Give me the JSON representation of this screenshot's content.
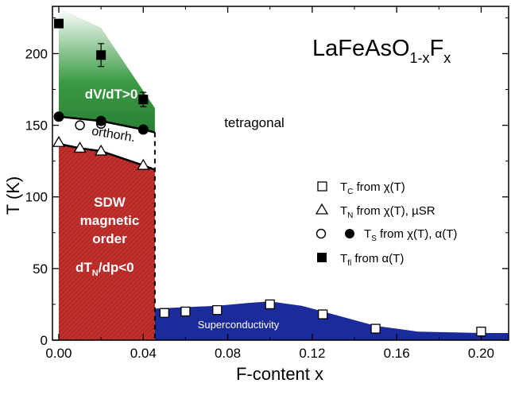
{
  "chart_data": {
    "type": "scatter",
    "title_main": "LaFeAsO",
    "title_sub": "1-x",
    "title_f": "F",
    "title_x": "x",
    "xlabel": "F-content x",
    "ylabel": "T (K)",
    "xlim": [
      -0.003,
      0.213
    ],
    "ylim": [
      0,
      233
    ],
    "x_ticks": [
      0.0,
      0.04,
      0.08,
      0.12,
      0.16,
      0.2
    ],
    "x_tick_labels": [
      "0.00",
      "0.04",
      "0.08",
      "0.12",
      "0.16",
      "0.20"
    ],
    "y_ticks": [
      0,
      50,
      100,
      150,
      200
    ],
    "y_tick_labels": [
      "0",
      "50",
      "100",
      "150",
      "200"
    ],
    "colors": {
      "sdw": "#c2302e",
      "dvdt": "#2f8f3a",
      "sc": "#1c2b9c",
      "black": "#000000"
    },
    "region_labels": {
      "dvdt": "dV/dT>0",
      "orthorh": "orthorh.",
      "tetragonal": "tetragonal",
      "sdw_line1": "SDW",
      "sdw_line2": "magnetic",
      "sdw_line3": "order",
      "sdw_dt": "dT",
      "sdw_sub": "N",
      "sdw_rest": "/dp<0",
      "sc": "Superconductivity"
    },
    "legend": [
      {
        "marker": "open-square",
        "name": "T",
        "sub": "C",
        "rest": " from χ(T)"
      },
      {
        "marker": "open-triangle",
        "name": "T",
        "sub": "N",
        "rest": " from χ(T), µSR"
      },
      {
        "marker": "circles",
        "name": "T",
        "sub": "S",
        "rest": " from χ(T), α(T)"
      },
      {
        "marker": "filled-square",
        "name": "T",
        "sub": "fl",
        "rest": " from α(T)"
      }
    ],
    "series": [
      {
        "name": "T_C from χ(T)",
        "marker": "open-square",
        "x": [
          0.05,
          0.06,
          0.075,
          0.1,
          0.125,
          0.15,
          0.2
        ],
        "y": [
          19,
          20,
          21,
          25,
          18,
          8,
          6
        ]
      },
      {
        "name": "T_N from χ(T), µSR",
        "marker": "open-triangle",
        "x": [
          0.0,
          0.01,
          0.02,
          0.04
        ],
        "y": [
          138,
          134,
          132,
          122
        ]
      },
      {
        "name": "T_S open",
        "marker": "open-circle",
        "x": [
          0.01,
          0.02
        ],
        "y": [
          150,
          151
        ]
      },
      {
        "name": "T_S filled",
        "marker": "filled-circle",
        "x": [
          0.0,
          0.02,
          0.04
        ],
        "y": [
          156,
          153,
          147
        ]
      },
      {
        "name": "T_fl from α(T)",
        "marker": "filled-square",
        "x": [
          0.0,
          0.02,
          0.04
        ],
        "y": [
          221,
          199,
          168
        ],
        "err": [
          0,
          8,
          5
        ]
      }
    ]
  }
}
